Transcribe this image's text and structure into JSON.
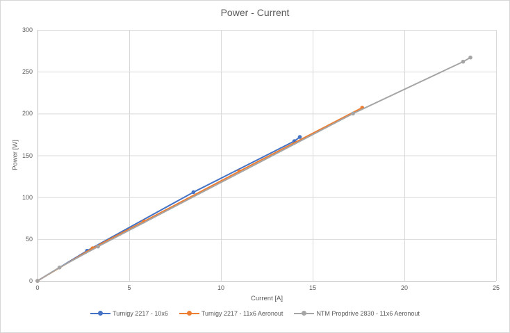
{
  "chart_data": {
    "type": "line",
    "title": "Power - Current",
    "xlabel": "Current [A]",
    "ylabel": "Power [W]",
    "xlim": [
      0,
      25
    ],
    "ylim": [
      0,
      300
    ],
    "xticks": [
      0,
      5,
      10,
      15,
      20,
      25
    ],
    "yticks": [
      0,
      50,
      100,
      150,
      200,
      250,
      300
    ],
    "grid": true,
    "legend_position": "bottom",
    "colors": {
      "grid": "#d9d9d9",
      "axis": "#bfbfbf",
      "text": "#595959"
    },
    "series": [
      {
        "name": "Turnigy 2217 - 10x6",
        "color": "#4472c4",
        "marker": "circle",
        "points": [
          [
            0,
            0
          ],
          [
            2.7,
            36
          ],
          [
            8.5,
            106
          ],
          [
            14.0,
            167
          ],
          [
            14.3,
            172
          ]
        ]
      },
      {
        "name": "Turnigy 2217 - 11x6 Aeronout",
        "color": "#ed7d31",
        "marker": "circle",
        "points": [
          [
            0,
            0
          ],
          [
            3.0,
            39
          ],
          [
            5.8,
            71
          ],
          [
            11.0,
            131
          ],
          [
            17.7,
            207
          ]
        ]
      },
      {
        "name": "NTM Propdrive 2830 - 11x6 Aeronout",
        "color": "#a5a5a5",
        "marker": "circle",
        "points": [
          [
            0,
            0
          ],
          [
            1.2,
            16
          ],
          [
            3.3,
            41
          ],
          [
            17.2,
            200
          ],
          [
            23.2,
            262
          ],
          [
            23.6,
            267
          ]
        ]
      }
    ]
  }
}
